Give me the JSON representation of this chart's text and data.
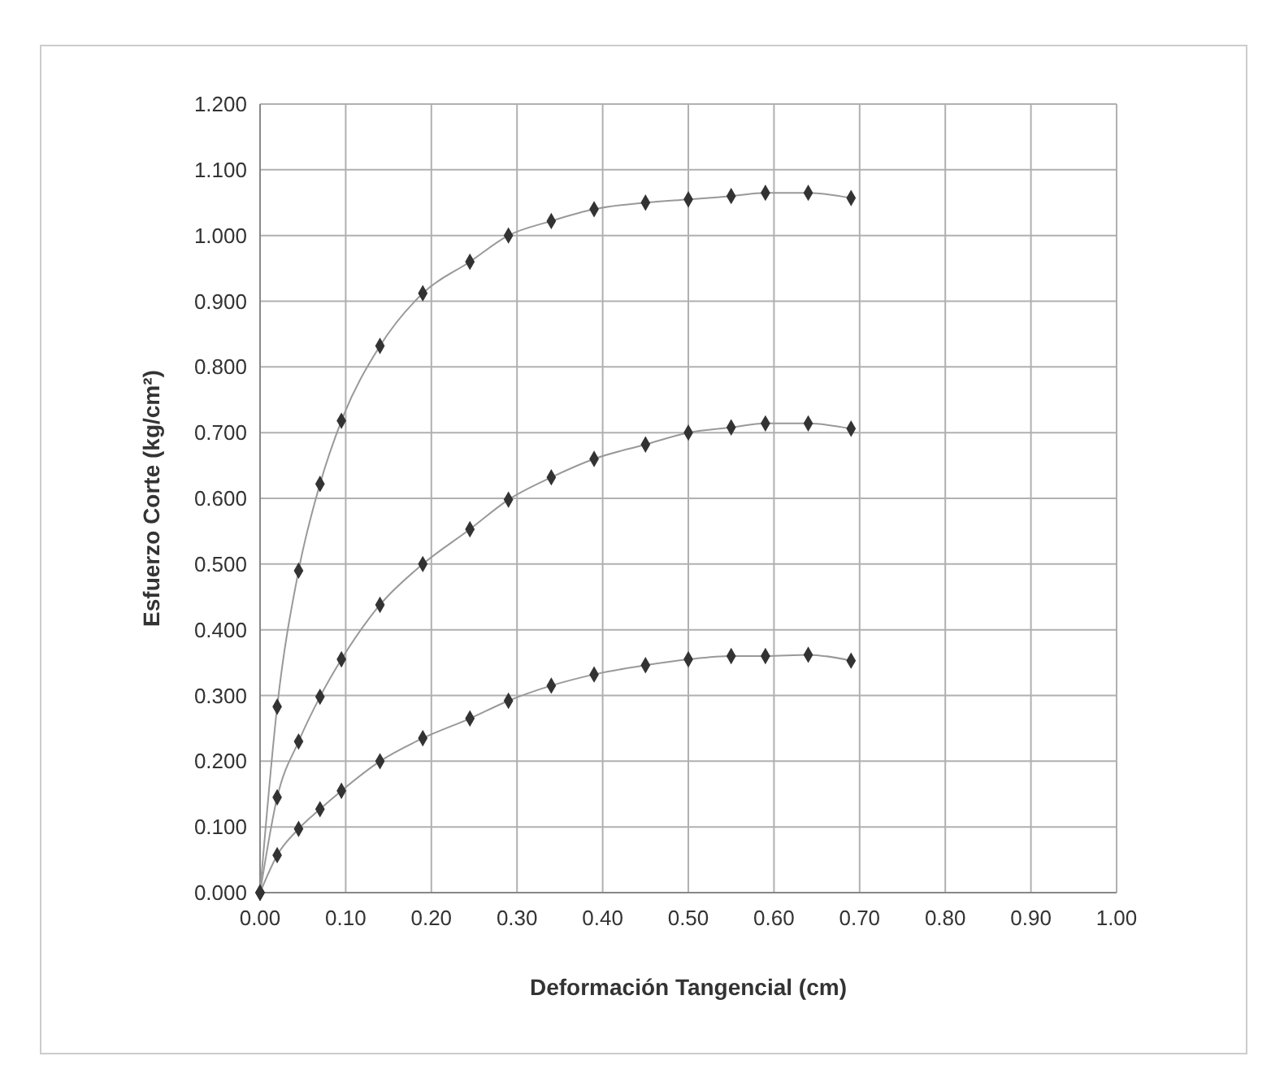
{
  "chart_data": {
    "type": "line",
    "xlabel": "Deformación Tangencial (cm)",
    "ylabel": "Esfuerzo Corte (kg/cm²)",
    "x": [
      0,
      0.02,
      0.045,
      0.07,
      0.095,
      0.14,
      0.19,
      0.245,
      0.29,
      0.34,
      0.39,
      0.45,
      0.5,
      0.55,
      0.59,
      0.64,
      0.69
    ],
    "series": [
      {
        "color": "#999999",
        "values": [
          0,
          0.283,
          0.49,
          0.622,
          0.718,
          0.832,
          0.912,
          0.96,
          1.0,
          1.022,
          1.04,
          1.05,
          1.055,
          1.06,
          1.065,
          1.065,
          1.057
        ]
      },
      {
        "color": "#999999",
        "values": [
          0,
          0.145,
          0.23,
          0.298,
          0.355,
          0.438,
          0.5,
          0.553,
          0.598,
          0.632,
          0.66,
          0.682,
          0.7,
          0.708,
          0.714,
          0.714,
          0.706
        ]
      },
      {
        "color": "#999999",
        "values": [
          0,
          0.057,
          0.097,
          0.127,
          0.155,
          0.2,
          0.235,
          0.265,
          0.292,
          0.315,
          0.332,
          0.346,
          0.355,
          0.36,
          0.36,
          0.362,
          0.353
        ]
      }
    ],
    "marker": "diamond",
    "line_style": "solid",
    "grid": true,
    "xlim": [
      0,
      1
    ],
    "ylim": [
      0,
      1.2
    ],
    "xticks": [
      {
        "value": 0,
        "label": "0.00"
      },
      {
        "value": 0.1,
        "label": "0.10"
      },
      {
        "value": 0.2,
        "label": "0.20"
      },
      {
        "value": 0.3,
        "label": "0.30"
      },
      {
        "value": 0.4,
        "label": "0.40"
      },
      {
        "value": 0.5,
        "label": "0.50"
      },
      {
        "value": 0.6,
        "label": "0.60"
      },
      {
        "value": 0.7,
        "label": "0.70"
      },
      {
        "value": 0.8,
        "label": "0.80"
      },
      {
        "value": 0.9,
        "label": "0.90"
      },
      {
        "value": 1,
        "label": "1.00"
      }
    ],
    "yticks": [
      {
        "value": 0,
        "label": "0.000"
      },
      {
        "value": 0.1,
        "label": "0.100"
      },
      {
        "value": 0.2,
        "label": "0.200"
      },
      {
        "value": 0.3,
        "label": "0.300"
      },
      {
        "value": 0.4,
        "label": "0.400"
      },
      {
        "value": 0.5,
        "label": "0.500"
      },
      {
        "value": 0.6,
        "label": "0.600"
      },
      {
        "value": 0.7,
        "label": "0.700"
      },
      {
        "value": 0.8,
        "label": "0.800"
      },
      {
        "value": 0.9,
        "label": "0.900"
      },
      {
        "value": 1,
        "label": "1.000"
      },
      {
        "value": 1.1,
        "label": "1.100"
      },
      {
        "value": 1.2,
        "label": "1.200"
      }
    ]
  }
}
